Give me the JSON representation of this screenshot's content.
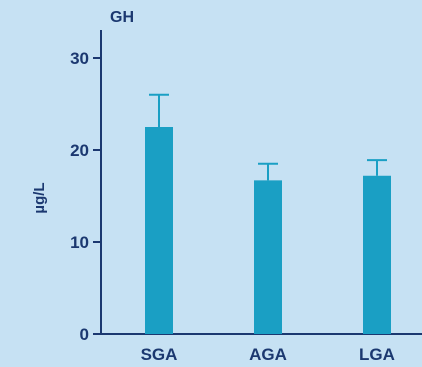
{
  "colors": {
    "background": "#c6e1f3",
    "bar": "#1a9fc4",
    "axis": "#1b3870"
  },
  "chart_data": {
    "type": "bar",
    "title": "GH",
    "ylabel": "µg/L",
    "xlabel": "",
    "categories": [
      "SGA",
      "AGA",
      "LGA"
    ],
    "values": [
      22.5,
      16.7,
      17.2
    ],
    "error_upper": [
      26.0,
      18.5,
      18.9
    ],
    "ylim": [
      0,
      30
    ],
    "yticks": [
      0,
      10,
      20,
      30
    ],
    "grid": false,
    "legend": "none"
  }
}
